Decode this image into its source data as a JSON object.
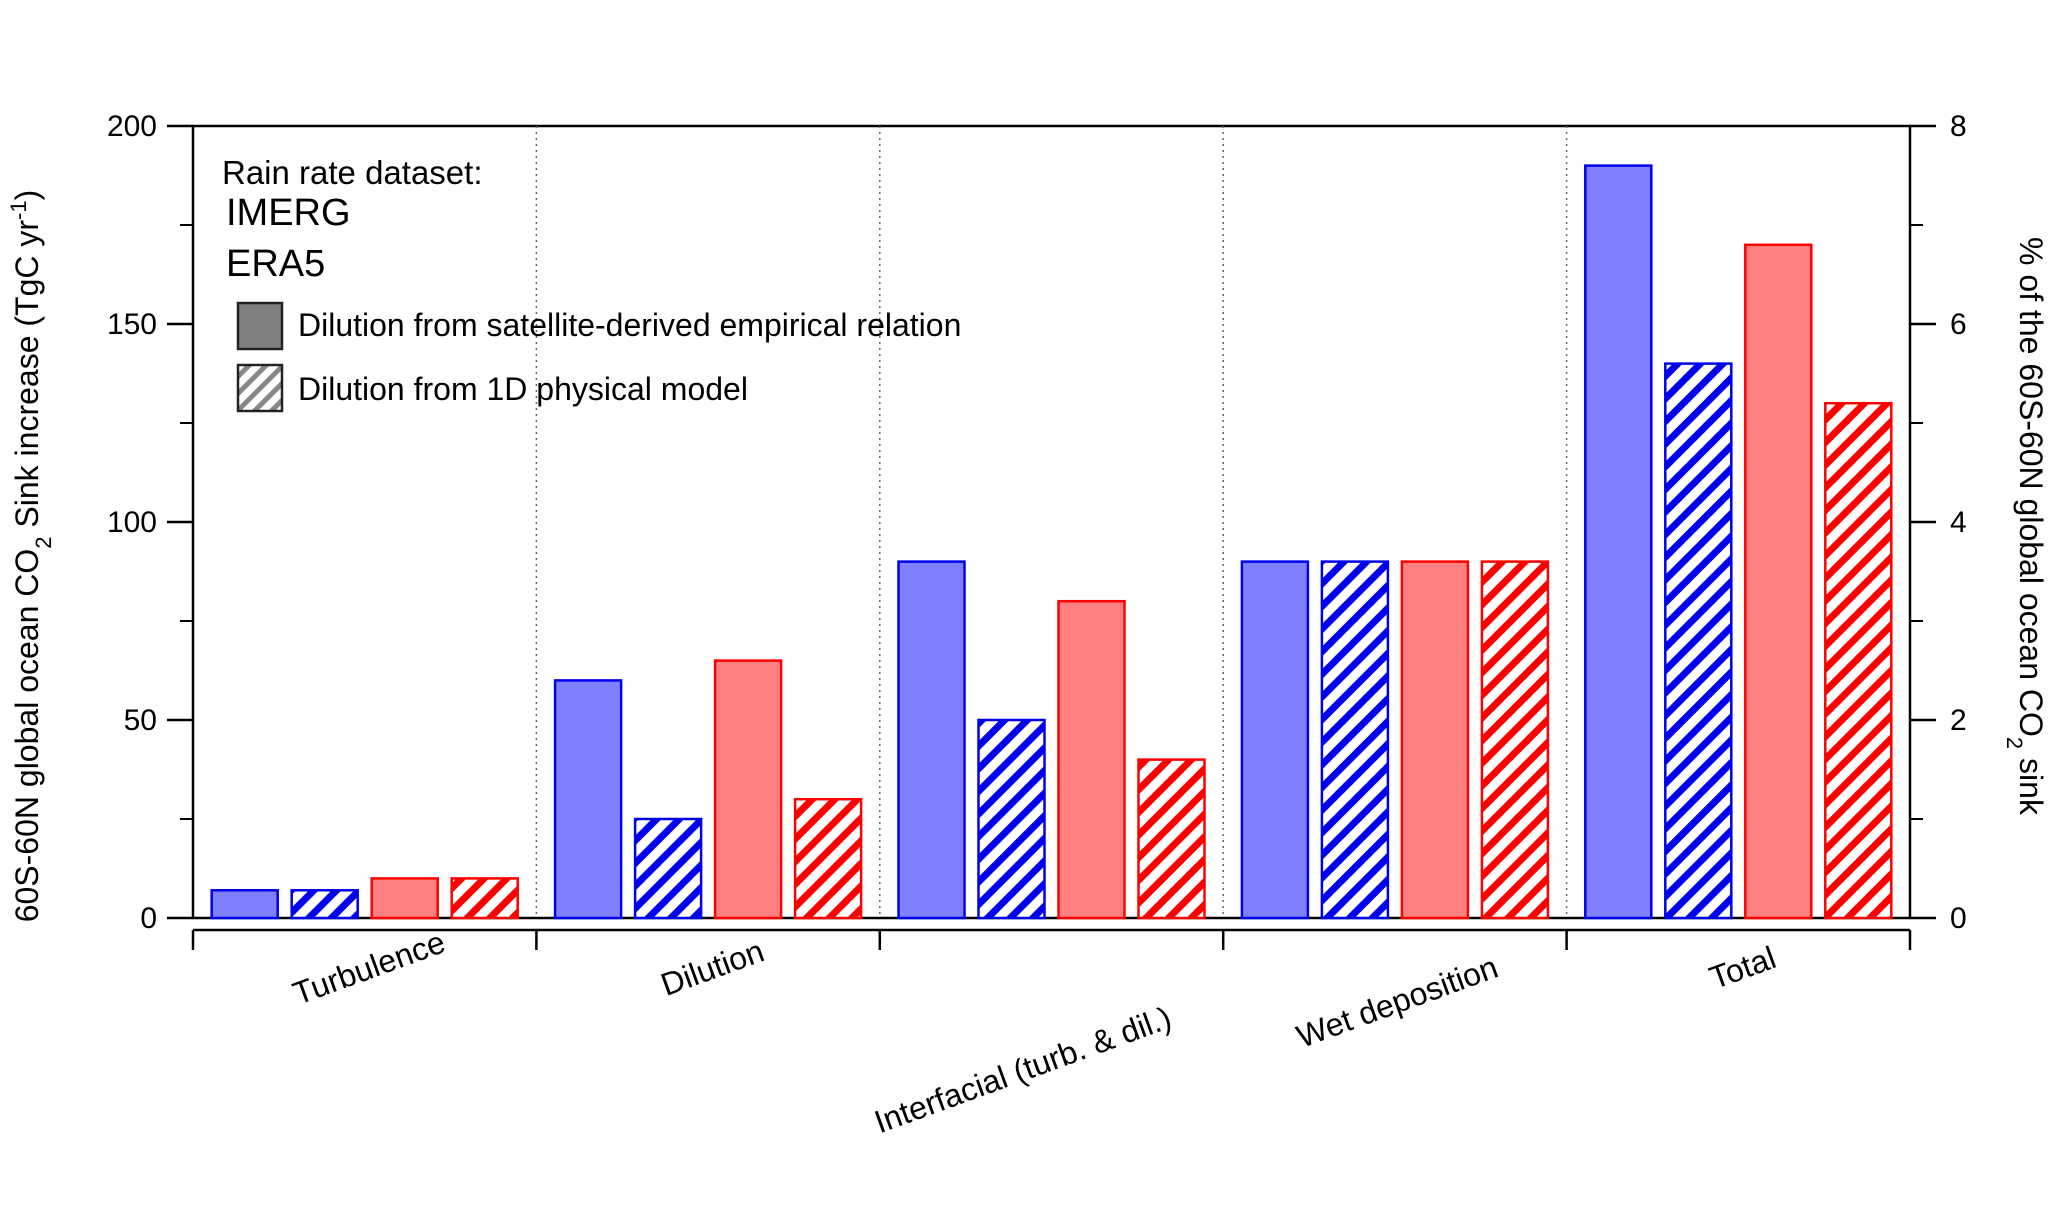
{
  "chart_data": {
    "type": "bar",
    "categories": [
      "Turbulence",
      "Dilution",
      "Interfacial (turb. & dil.)",
      "Wet deposition",
      "Total"
    ],
    "series": [
      {
        "name": "IMERG",
        "dilution_method": "satellite",
        "color": "#0000ee",
        "fill": "#8080ff",
        "values": [
          7,
          60,
          90,
          90,
          190
        ]
      },
      {
        "name": "IMERG",
        "dilution_method": "physical",
        "color": "#0000ee",
        "fill": "hatched",
        "values": [
          7,
          25,
          50,
          90,
          140
        ]
      },
      {
        "name": "ERA5",
        "dilution_method": "satellite",
        "color": "#ff0000",
        "fill": "#ff8080",
        "values": [
          10,
          65,
          80,
          90,
          170
        ]
      },
      {
        "name": "ERA5",
        "dilution_method": "physical",
        "color": "#ff0000",
        "fill": "hatched",
        "values": [
          10,
          30,
          40,
          90,
          130
        ]
      }
    ],
    "ylabel_parts": [
      "60S-60N global ocean CO",
      "2",
      " Sink increase (TgC yr",
      "-1",
      ")"
    ],
    "y2label_parts": [
      "% of the 60S-60N global ocean CO",
      "2",
      " sink"
    ],
    "ylim": [
      0,
      200
    ],
    "y2lim": [
      0,
      8
    ],
    "yticks": [
      0,
      50,
      100,
      150,
      200
    ],
    "y2ticks": [
      0,
      2,
      4,
      6,
      8
    ],
    "legend": {
      "title": "Rain rate dataset:",
      "series": [
        {
          "label": "IMERG",
          "color": "#0000ee"
        },
        {
          "label": "ERA5",
          "color": "#ff0000"
        }
      ],
      "items": [
        {
          "label": "Dilution from satellite-derived empirical relation",
          "style": "solid"
        },
        {
          "label": "Dilution from 1D physical model",
          "style": "hatched"
        }
      ],
      "placement": "top-left"
    },
    "grid": "vertical dotted separators between categories"
  }
}
